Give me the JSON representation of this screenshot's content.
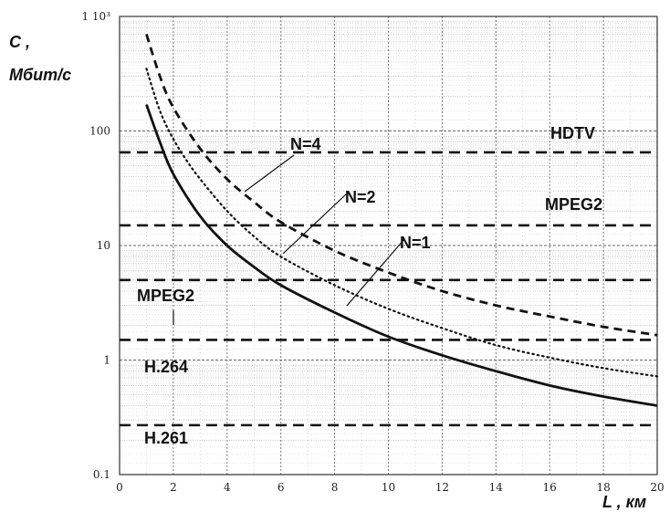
{
  "chart_data": {
    "type": "line",
    "title": "",
    "ylabel_line1": "C ,",
    "ylabel_line2": "Мбит/с",
    "xlabel": "L , км",
    "xlim": [
      0,
      20
    ],
    "ylim": [
      0.1,
      1000
    ],
    "y_scale": "log",
    "grid": true,
    "x_ticks": [
      "0",
      "2",
      "4",
      "6",
      "8",
      "10",
      "12",
      "14",
      "16",
      "18",
      "20"
    ],
    "y_ticks": [
      {
        "value": 1000,
        "label": "1 10³"
      },
      {
        "value": 100,
        "label": "100"
      },
      {
        "value": 10,
        "label": "10"
      },
      {
        "value": 1,
        "label": "1"
      },
      {
        "value": 0.1,
        "label": "0.1"
      }
    ],
    "series": [
      {
        "name": "N=1",
        "style": "solid",
        "x": [
          1,
          1.5,
          2,
          3,
          4,
          5,
          6,
          8,
          10,
          12,
          14,
          16,
          18,
          20
        ],
        "y": [
          170,
          80,
          42,
          18,
          10,
          6.5,
          4.5,
          2.6,
          1.6,
          1.1,
          0.8,
          0.6,
          0.48,
          0.4
        ]
      },
      {
        "name": "N=2",
        "style": "dotted",
        "x": [
          1,
          1.5,
          2,
          2.5,
          3,
          4,
          5,
          6,
          8,
          10,
          12,
          14,
          16,
          18,
          20
        ],
        "y": [
          350,
          150,
          85,
          55,
          38,
          20,
          12,
          8,
          4.5,
          2.8,
          1.9,
          1.35,
          1.05,
          0.85,
          0.72
        ]
      },
      {
        "name": "N=4",
        "style": "dashed",
        "x": [
          1,
          1.5,
          2,
          3,
          4,
          5,
          6,
          8,
          10,
          12,
          14,
          16,
          18,
          20
        ],
        "y": [
          700,
          300,
          160,
          70,
          38,
          24,
          16,
          9,
          5.8,
          4.0,
          3.0,
          2.4,
          1.95,
          1.65
        ]
      }
    ],
    "reference_lines": [
      {
        "label": "HDTV",
        "value": 65
      },
      {
        "label": "MPEG2",
        "value": 15
      },
      {
        "label": "MPEG2",
        "value": 5
      },
      {
        "label": "H.264",
        "value": 1.5
      },
      {
        "label": "H.261",
        "value": 0.27
      }
    ]
  }
}
